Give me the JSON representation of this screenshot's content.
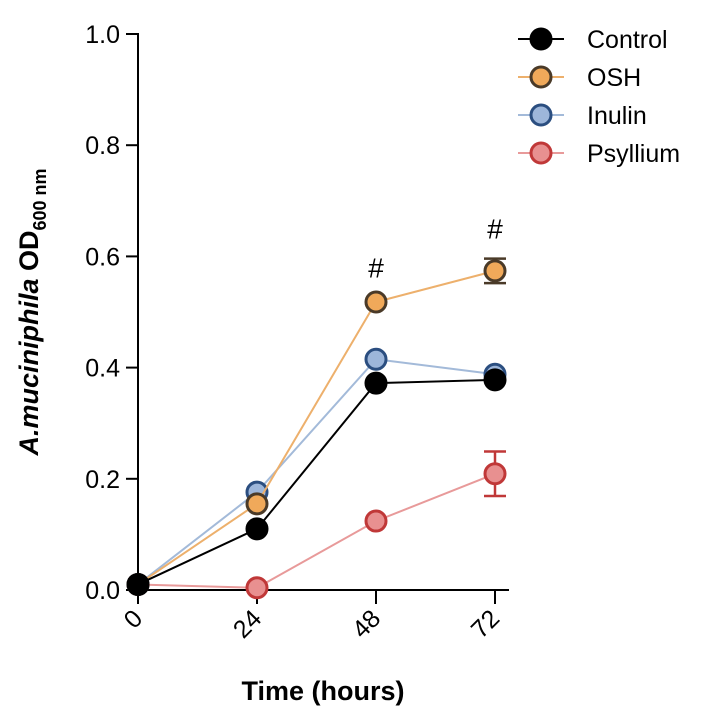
{
  "chart_data": {
    "type": "line",
    "title": "",
    "xlabel": "Time (hours)",
    "ylabel": {
      "italic": "A.muciniphila",
      "main": " OD",
      "subscript": "600 nm"
    },
    "x": [
      0,
      24,
      48,
      72
    ],
    "x_tick_labels": [
      "0",
      "24",
      "48",
      "72"
    ],
    "xlim": [
      0,
      72
    ],
    "ylim": [
      0,
      1.0
    ],
    "y_ticks": [
      0.0,
      0.2,
      0.4,
      0.6,
      0.8,
      1.0
    ],
    "y_tick_labels": [
      "0.0",
      "0.2",
      "0.4",
      "0.6",
      "0.8",
      "1.0"
    ],
    "grid": false,
    "legend_position": "top-right",
    "series": [
      {
        "name": "Control",
        "values": [
          0.01,
          0.11,
          0.372,
          0.378
        ],
        "errors": [
          0,
          0,
          0,
          0
        ],
        "line_color": "#000000",
        "marker_fill": "#000000",
        "marker_stroke": "#000000"
      },
      {
        "name": "OSH",
        "values": [
          0.01,
          0.155,
          0.518,
          0.574
        ],
        "errors": [
          0,
          0,
          0,
          0.022
        ],
        "line_color": "#EDB06C",
        "marker_fill": "#F0A95A",
        "marker_stroke": "#4A3A28"
      },
      {
        "name": "Inulin",
        "values": [
          0.01,
          0.176,
          0.415,
          0.388
        ],
        "errors": [
          0,
          0,
          0,
          0
        ],
        "line_color": "#A3BAD9",
        "marker_fill": "#9DB6DA",
        "marker_stroke": "#2B4E80"
      },
      {
        "name": "Psyllium",
        "values": [
          0.01,
          0.004,
          0.124,
          0.209
        ],
        "errors": [
          0,
          0,
          0,
          0.04
        ],
        "line_color": "#E89A9A",
        "marker_fill": "#E89090",
        "marker_stroke": "#C03838"
      }
    ],
    "annotations": [
      {
        "text": "#",
        "x": 48,
        "y": 0.58
      },
      {
        "text": "#",
        "x": 72,
        "y": 0.65
      }
    ]
  }
}
